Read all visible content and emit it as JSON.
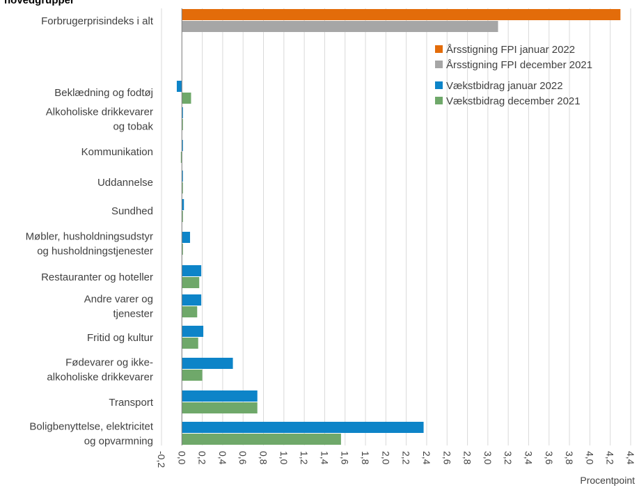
{
  "chart_data": {
    "type": "bar",
    "orientation": "horizontal",
    "title": "hovedgrupper",
    "xlabel": "Procentpoint",
    "xlim": [
      -0.2,
      4.4
    ],
    "x_ticks": [
      "-0,2",
      "0,0",
      "0,2",
      "0,4",
      "0,6",
      "0,8",
      "1,0",
      "1,2",
      "1,4",
      "1,6",
      "1,8",
      "2,0",
      "2,2",
      "2,4",
      "2,6",
      "2,8",
      "3,0",
      "3,2",
      "3,4",
      "3,6",
      "3,8",
      "4,0",
      "4,2",
      "4,4"
    ],
    "x_tick_values": [
      -0.2,
      0,
      0.2,
      0.4,
      0.6,
      0.8,
      1.0,
      1.2,
      1.4,
      1.6,
      1.8,
      2.0,
      2.2,
      2.4,
      2.6,
      2.8,
      3.0,
      3.2,
      3.4,
      3.6,
      3.8,
      4.0,
      4.2,
      4.4
    ],
    "grid": "vertical",
    "legend_position": "top-right",
    "categories": [
      [
        "Forbrugerprisindeks i alt"
      ],
      [
        "Beklædning og fodtøj"
      ],
      [
        "Alkoholiske drikkevarer",
        "og tobak"
      ],
      [
        "Kommunikation"
      ],
      [
        "Uddannelse"
      ],
      [
        "Sundhed"
      ],
      [
        "Møbler, husholdningsudstyr",
        "og husholdningstjenester"
      ],
      [
        "Restauranter og hoteller"
      ],
      [
        "Andre varer og",
        "tjenester"
      ],
      [
        "Fritid og kultur"
      ],
      [
        "Fødevarer og ikke-",
        "alkoholiske drikkevarer"
      ],
      [
        "Transport"
      ],
      [
        "Boligbenyttelse, elektricitet",
        "og opvarmning"
      ]
    ],
    "series": [
      {
        "name": "Årsstigning FPI januar 2022",
        "color": "#E36C0A",
        "values": [
          4.3,
          null,
          null,
          null,
          null,
          null,
          null,
          null,
          null,
          null,
          null,
          null,
          null
        ]
      },
      {
        "name": "Årsstigning FPI december 2021",
        "color": "#A6A6A6",
        "values": [
          3.1,
          null,
          null,
          null,
          null,
          null,
          null,
          null,
          null,
          null,
          null,
          null,
          null
        ]
      },
      {
        "name": "Vækstbidrag januar 2022",
        "color": "#0D84C8",
        "values": [
          null,
          -0.05,
          0.0,
          0.0,
          0.01,
          0.02,
          0.08,
          0.19,
          0.19,
          0.21,
          0.5,
          0.74,
          2.37
        ]
      },
      {
        "name": "Vækstbidrag december 2021",
        "color": "#6FA86A",
        "values": [
          null,
          0.09,
          0.0,
          -0.01,
          0.01,
          0.0,
          0.0,
          0.17,
          0.15,
          0.16,
          0.2,
          0.74,
          1.56
        ]
      }
    ]
  }
}
